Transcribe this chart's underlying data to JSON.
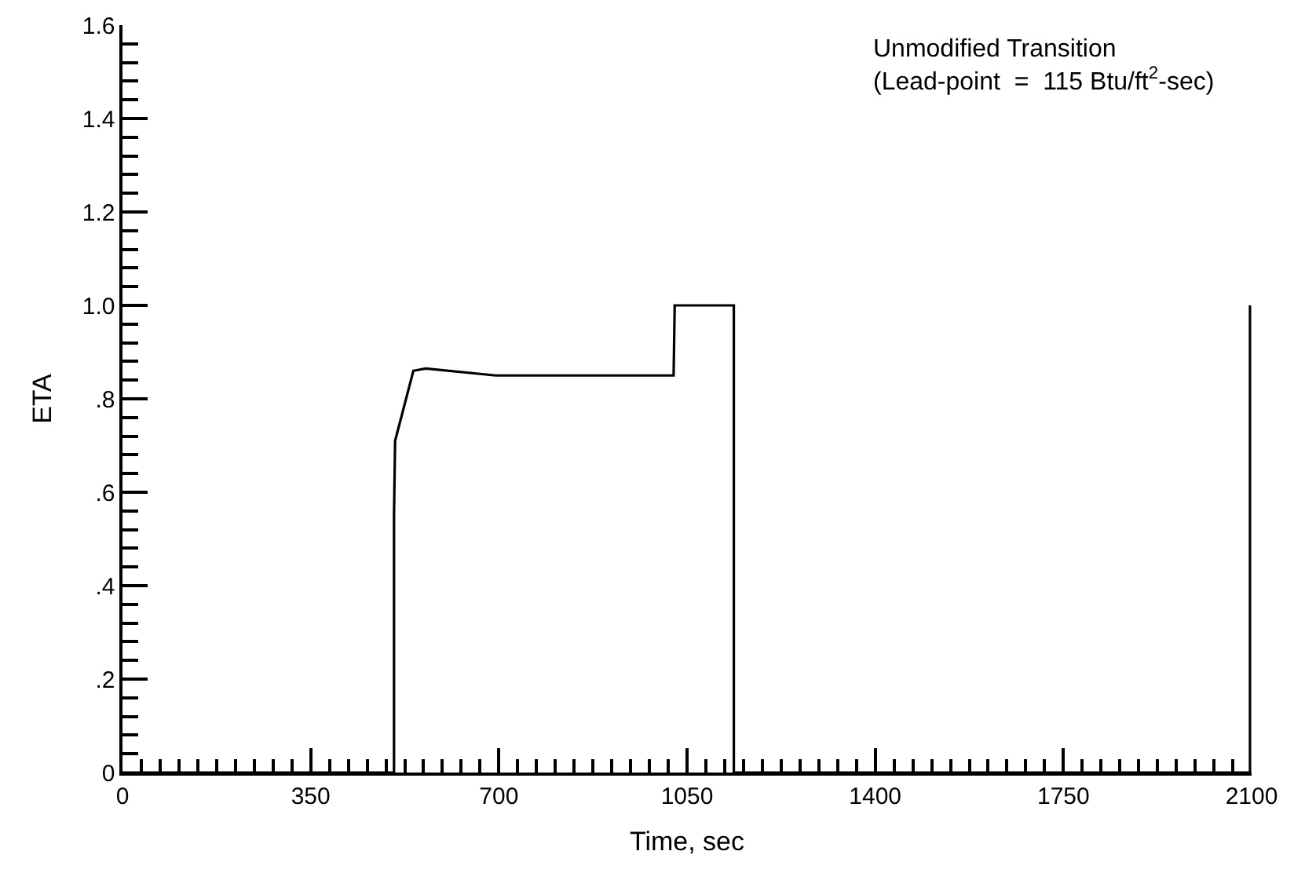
{
  "chart_data": {
    "type": "line",
    "xlabel": "Time, sec",
    "ylabel": "ETA",
    "annotations": [
      "Unmodified Transition\n(Lead-point  =  115 Btu/ft$^{2}$-sec)"
    ],
    "series": [
      {
        "color": "#000000",
        "x": [
          0,
          505,
          505,
          507,
          541,
          564,
          694,
          1025,
          1027,
          1137,
          1137,
          2097,
          2097
        ],
        "values": [
          0,
          0,
          0.55,
          0.71,
          0.86,
          0.865,
          0.85,
          0.85,
          1.0,
          1.0,
          0,
          0,
          1.0
        ]
      }
    ],
    "xlim": [
      0,
      2100
    ],
    "ylim": [
      0,
      1.6
    ],
    "xticks": [
      0,
      350,
      700,
      1050,
      1400,
      1750,
      2100,
      {
        "value": 35,
        "label": null
      },
      {
        "value": 70,
        "label": null
      },
      {
        "value": 105,
        "label": null
      },
      {
        "value": 140,
        "label": null
      },
      {
        "value": 175,
        "label": null
      },
      {
        "value": 210,
        "label": null
      },
      {
        "value": 245,
        "label": null
      },
      {
        "value": 280,
        "label": null
      },
      {
        "value": 315,
        "label": null
      },
      {
        "value": 385,
        "label": null
      },
      {
        "value": 420,
        "label": null
      },
      {
        "value": 455,
        "label": null
      },
      {
        "value": 490,
        "label": null
      },
      {
        "value": 525,
        "label": null
      },
      {
        "value": 560,
        "label": null
      },
      {
        "value": 595,
        "label": null
      },
      {
        "value": 630,
        "label": null
      },
      {
        "value": 665,
        "label": null
      },
      {
        "value": 735,
        "label": null
      },
      {
        "value": 770,
        "label": null
      },
      {
        "value": 805,
        "label": null
      },
      {
        "value": 840,
        "label": null
      },
      {
        "value": 875,
        "label": null
      },
      {
        "value": 910,
        "label": null
      },
      {
        "value": 945,
        "label": null
      },
      {
        "value": 980,
        "label": null
      },
      {
        "value": 1015,
        "label": null
      },
      {
        "value": 1085,
        "label": null
      },
      {
        "value": 1120,
        "label": null
      },
      {
        "value": 1155,
        "label": null
      },
      {
        "value": 1190,
        "label": null
      },
      {
        "value": 1225,
        "label": null
      },
      {
        "value": 1260,
        "label": null
      },
      {
        "value": 1295,
        "label": null
      },
      {
        "value": 1330,
        "label": null
      },
      {
        "value": 1365,
        "label": null
      },
      {
        "value": 1435,
        "label": null
      },
      {
        "value": 1470,
        "label": null
      },
      {
        "value": 1505,
        "label": null
      },
      {
        "value": 1540,
        "label": null
      },
      {
        "value": 1575,
        "label": null
      },
      {
        "value": 1610,
        "label": null
      },
      {
        "value": 1645,
        "label": null
      },
      {
        "value": 1680,
        "label": null
      },
      {
        "value": 1715,
        "label": null
      },
      {
        "value": 1785,
        "label": null
      },
      {
        "value": 1820,
        "label": null
      },
      {
        "value": 1855,
        "label": null
      },
      {
        "value": 1890,
        "label": null
      },
      {
        "value": 1925,
        "label": null
      },
      {
        "value": 1960,
        "label": null
      },
      {
        "value": 1995,
        "label": null
      },
      {
        "value": 2030,
        "label": null
      },
      {
        "value": 2065,
        "label": null
      }
    ],
    "yticks": [
      0,
      {
        "value": 0.2,
        "label": ".2"
      },
      {
        "value": 0.4,
        "label": ".4"
      },
      {
        "value": 0.6,
        "label": ".6"
      },
      {
        "value": 0.8,
        "label": ".8"
      },
      {
        "value": 1.0,
        "label": "1.0"
      },
      1.2,
      1.4,
      1.6,
      {
        "value": 0.04,
        "label": null
      },
      {
        "value": 0.08,
        "label": null
      },
      {
        "value": 0.12,
        "label": null
      },
      {
        "value": 0.16,
        "label": null
      },
      {
        "value": 0.24,
        "label": null
      },
      {
        "value": 0.28,
        "label": null
      },
      {
        "value": 0.32,
        "label": null
      },
      {
        "value": 0.36,
        "label": null
      },
      {
        "value": 0.44,
        "label": null
      },
      {
        "value": 0.48,
        "label": null
      },
      {
        "value": 0.52,
        "label": null
      },
      {
        "value": 0.56,
        "label": null
      },
      {
        "value": 0.64,
        "label": null
      },
      {
        "value": 0.68,
        "label": null
      },
      {
        "value": 0.72,
        "label": null
      },
      {
        "value": 0.76,
        "label": null
      },
      {
        "value": 0.84,
        "label": null
      },
      {
        "value": 0.88,
        "label": null
      },
      {
        "value": 0.92,
        "label": null
      },
      {
        "value": 0.96,
        "label": null
      },
      {
        "value": 1.04,
        "label": null
      },
      {
        "value": 1.08,
        "label": null
      },
      {
        "value": 1.12,
        "label": null
      },
      {
        "value": 1.16,
        "label": null
      },
      {
        "value": 1.24,
        "label": null
      },
      {
        "value": 1.28,
        "label": null
      },
      {
        "value": 1.32,
        "label": null
      },
      {
        "value": 1.36,
        "label": null
      },
      {
        "value": 1.44,
        "label": null
      },
      {
        "value": 1.48,
        "label": null
      },
      {
        "value": 1.52,
        "label": null
      },
      {
        "value": 1.56,
        "label": null
      }
    ],
    "marker": "none",
    "line_style": "solid"
  }
}
